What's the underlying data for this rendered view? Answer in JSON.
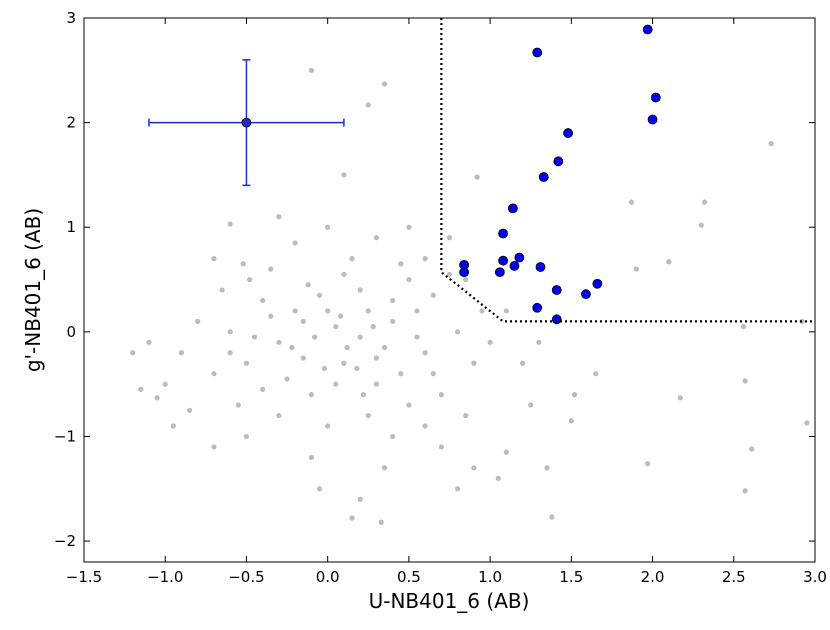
{
  "chart_data": {
    "type": "scatter",
    "xlabel": "U-NB401_6 (AB)",
    "ylabel": "g'-NB401_6 (AB)",
    "xlim": [
      -1.5,
      3.0
    ],
    "ylim": [
      -2.2,
      3
    ],
    "xticks": [
      {
        "value": -1.5,
        "label": "−1.5"
      },
      {
        "value": -1.0,
        "label": "−1.0"
      },
      {
        "value": -0.5,
        "label": "−0.5"
      },
      {
        "value": 0,
        "label": "0.0"
      },
      0.5,
      {
        "value": 1,
        "label": "1.0"
      },
      1.5,
      {
        "value": 2,
        "label": "2.0"
      },
      2.5,
      {
        "value": 3,
        "label": "3.0"
      }
    ],
    "yticks": [
      {
        "value": -2,
        "label": "−2"
      },
      {
        "value": -1,
        "label": "−1"
      },
      0,
      1,
      2,
      3
    ],
    "series": [
      {
        "color": "#bbbbbb",
        "x": [
          -0.1,
          0.35,
          0.25,
          0.92,
          0.1,
          2.73,
          1.87,
          2.32,
          2.3,
          2.1,
          1.9,
          2.56,
          2.92,
          2.57,
          2.17,
          1.97,
          2.61,
          2.57,
          2.95,
          1.35,
          1.38,
          1.1,
          0.15,
          0.33,
          -1.2,
          -1.15,
          -1.05,
          -0.95,
          -0.7,
          -0.6,
          -0.52,
          1.5,
          1.65,
          1.52,
          -0.3,
          0.1,
          -0.2,
          0.05,
          0.3,
          -0.5,
          0.2,
          -0.1,
          0.4,
          -0.4,
          0.6,
          -0.6,
          0.0,
          0.15,
          -0.25,
          0.35,
          -0.05,
          0.5,
          -0.7,
          0.7,
          0.25,
          -0.35,
          0.45,
          -0.15,
          0.08,
          -0.55,
          0.55,
          -0.8,
          0.8,
          0.0,
          -0.1,
          0.3,
          -0.45,
          0.65,
          0.2,
          -0.3,
          0.9,
          -0.9,
          0.4,
          0.1,
          -0.2,
          0.6,
          -0.65,
          0.75,
          0.05,
          -0.15,
          0.25,
          -0.4,
          0.5,
          0.95,
          -1.0,
          0.85,
          1.0,
          0.7,
          0.9,
          1.05,
          0.8,
          0.35,
          0.2,
          -0.05,
          -0.5,
          -0.7,
          -0.85,
          0.45,
          0.0,
          0.12,
          -0.08,
          0.18,
          -0.22,
          0.28,
          -0.35,
          0.4,
          -0.12,
          0.6,
          0.75,
          -0.3,
          0.5,
          0.85,
          1.1,
          1.2,
          1.25,
          1.3,
          -1.1,
          0.65,
          -0.6,
          0.3,
          -0.02,
          0.22,
          -0.48,
          0.55
        ],
        "y": [
          2.5,
          2.37,
          2.17,
          1.48,
          1.5,
          1.8,
          1.24,
          1.24,
          1.02,
          0.67,
          0.6,
          0.05,
          0.1,
          -0.47,
          -0.63,
          -1.26,
          -1.12,
          -1.52,
          -0.87,
          -1.3,
          -1.77,
          -1.15,
          -1.78,
          -1.82,
          -0.2,
          -0.55,
          -0.63,
          -0.9,
          -1.1,
          1.03,
          0.65,
          -0.85,
          -0.4,
          -0.6,
          -0.1,
          -0.3,
          0.2,
          0.05,
          -0.5,
          -0.3,
          0.4,
          -0.6,
          0.1,
          0.3,
          -0.2,
          0.0,
          -0.9,
          0.7,
          -0.45,
          -0.15,
          0.35,
          0.5,
          -0.4,
          -0.6,
          -0.8,
          0.6,
          -0.4,
          -0.25,
          0.15,
          -0.7,
          0.2,
          0.1,
          0.0,
          1.0,
          -1.2,
          0.9,
          -0.05,
          0.35,
          -0.05,
          -0.8,
          -0.3,
          -0.2,
          -1.0,
          0.55,
          0.85,
          -0.9,
          0.4,
          0.55,
          -0.5,
          0.1,
          0.2,
          -0.55,
          -0.7,
          0.2,
          -0.5,
          -0.8,
          -0.1,
          -1.1,
          -1.3,
          -1.4,
          -1.5,
          -1.3,
          -1.6,
          -1.5,
          -1.0,
          0.7,
          -0.75,
          0.65,
          0.2,
          -0.15,
          -0.05,
          -0.35,
          -0.15,
          0.05,
          0.15,
          0.3,
          0.45,
          0.7,
          0.9,
          1.1,
          1.0,
          0.5,
          0.2,
          -0.3,
          -0.7,
          -0.1,
          -0.1,
          -0.4,
          -0.2,
          -0.25,
          -0.35,
          -0.6,
          0.5,
          -0.05
        ]
      },
      {
        "color": "#0000ee",
        "x": [
          1.29,
          1.97,
          2.02,
          2.0,
          1.48,
          1.42,
          1.33,
          1.14,
          1.08,
          0.84,
          0.84,
          1.08,
          1.06,
          1.18,
          1.15,
          1.31,
          1.41,
          1.66,
          1.59,
          1.29,
          1.41
        ],
        "y": [
          2.67,
          2.89,
          2.24,
          2.03,
          1.9,
          1.63,
          1.48,
          1.18,
          0.94,
          0.64,
          0.57,
          0.68,
          0.57,
          0.71,
          0.63,
          0.62,
          0.4,
          0.46,
          0.36,
          0.23,
          0.12
        ]
      }
    ],
    "errorbar": {
      "x": -0.5,
      "y": 2,
      "xerr": 0.6,
      "yerr": 0.6,
      "color": "#1a2fcc"
    },
    "selection": {
      "x": [
        0.7,
        0.7,
        1.08,
        3.0
      ],
      "y": [
        3,
        0.57,
        0.1,
        0.1
      ]
    }
  }
}
